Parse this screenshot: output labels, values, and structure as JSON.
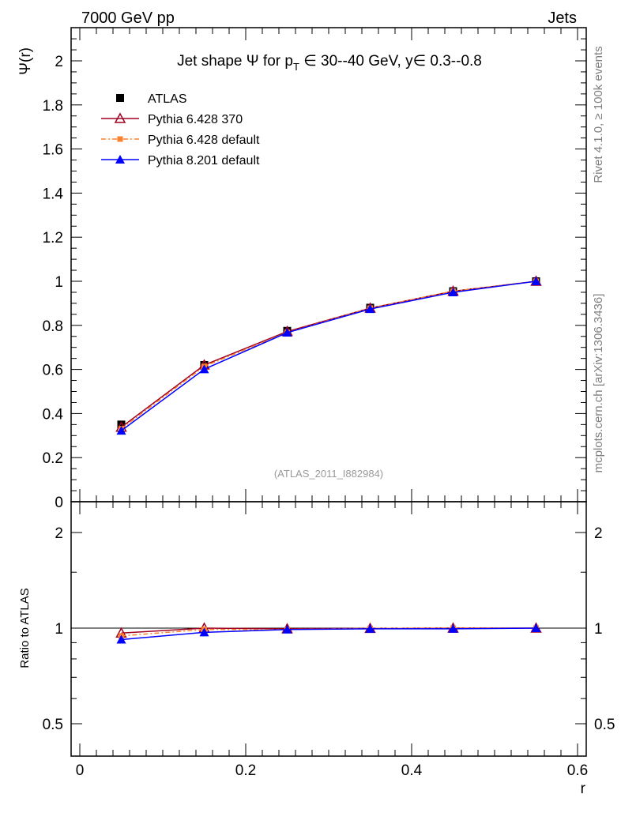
{
  "header": {
    "left": "7000 GeV pp",
    "right": "Jets"
  },
  "side": {
    "top": "Rivet 4.1.0, ≥ 100k events",
    "bottom": "mcplots.cern.ch [arXiv:1306.3436]"
  },
  "watermark": "(ATLAS_2011_I882984)",
  "chart_data": [
    {
      "type": "line",
      "title": "Jet shape Ψ for p_T ∈ 30--40 GeV, y∈ 0.3--0.8",
      "title_parts": {
        "a": "Jet shape ",
        "psi": "Ψ",
        "b": " for p",
        "sub": "T",
        "c": " ∈ 30--40 GeV, y∈ 0.3--0.8"
      },
      "ylabel": "Ψ(r)",
      "xlim": [
        -0.01,
        0.61
      ],
      "ylim": [
        0,
        2.15
      ],
      "yticks": [
        "0",
        "0.2",
        "0.4",
        "0.6",
        "0.8",
        "1",
        "1.2",
        "1.4",
        "1.6",
        "1.8",
        "2"
      ],
      "x": [
        0.05,
        0.15,
        0.25,
        0.35,
        0.45,
        0.55
      ],
      "series": [
        {
          "name": "ATLAS",
          "color": "#000000",
          "values": [
            0.35,
            0.62,
            0.775,
            0.88,
            0.955,
            1.0
          ]
        },
        {
          "name": "Pythia 6.428 370",
          "color": "#a00020",
          "values": [
            0.338,
            0.62,
            0.772,
            0.878,
            0.955,
            1.0
          ]
        },
        {
          "name": "Pythia 6.428 default",
          "color": "#ff7f2a",
          "values": [
            0.331,
            0.614,
            0.768,
            0.878,
            0.955,
            1.0
          ]
        },
        {
          "name": "Pythia 8.201 default",
          "color": "#0000ff",
          "values": [
            0.322,
            0.601,
            0.767,
            0.874,
            0.95,
            1.0
          ]
        }
      ]
    },
    {
      "type": "line",
      "ylabel": "Ratio to ATLAS",
      "xlabel": "r",
      "yscale": "log",
      "ylim": [
        0.395,
        2.5
      ],
      "yticks": [
        "0.5",
        "1",
        "2"
      ],
      "xticks": [
        "0",
        "0.2",
        "0.4",
        "0.6"
      ],
      "x": [
        0.05,
        0.15,
        0.25,
        0.35,
        0.45,
        0.55
      ],
      "series": [
        {
          "name": "Pythia 6.428 370",
          "color": "#a00020",
          "values": [
            0.965,
            1.0,
            0.995,
            0.998,
            1.0,
            1.0
          ]
        },
        {
          "name": "Pythia 6.428 default",
          "color": "#ff7f2a",
          "values": [
            0.945,
            0.99,
            0.99,
            0.998,
            1.0,
            1.0
          ]
        },
        {
          "name": "Pythia 8.201 default",
          "color": "#0000ff",
          "values": [
            0.92,
            0.97,
            0.99,
            0.995,
            0.995,
            1.0
          ]
        }
      ]
    }
  ]
}
